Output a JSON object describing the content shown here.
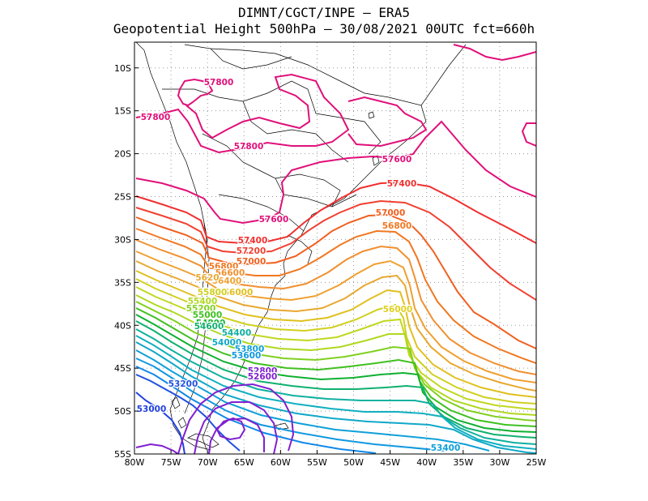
{
  "header": {
    "line1": "DIMNT/CGCT/INPE  –  ERA5",
    "line2": "Geopotential Height 500hPa –  30/08/2021 00UTC fct=660h"
  },
  "map": {
    "lon_range": [
      -80,
      -25
    ],
    "lat_range": [
      -55,
      -7
    ],
    "lon_ticks": [
      "80W",
      "75W",
      "70W",
      "65W",
      "60W",
      "55W",
      "50W",
      "45W",
      "40W",
      "35W",
      "30W",
      "25W"
    ],
    "lat_ticks": [
      "10S",
      "15S",
      "20S",
      "25S",
      "30S",
      "35S",
      "40S",
      "45S",
      "50S",
      "55S"
    ],
    "grid": true,
    "contour_interval": 200
  },
  "contour_labels": [
    {
      "text": "57800",
      "color": "#e0107a"
    },
    {
      "text": "57800",
      "color": "#e0107a"
    },
    {
      "text": "57800",
      "color": "#e0107a"
    },
    {
      "text": "57600",
      "color": "#e0107a"
    },
    {
      "text": "57600",
      "color": "#e0107a"
    },
    {
      "text": "57400",
      "color": "#f03030"
    },
    {
      "text": "57400",
      "color": "#f03030"
    },
    {
      "text": "57200",
      "color": "#f04030"
    },
    {
      "text": "57000",
      "color": "#f06020"
    },
    {
      "text": "57000",
      "color": "#f06020"
    },
    {
      "text": "56800",
      "color": "#f07820"
    },
    {
      "text": "56800",
      "color": "#f07820"
    },
    {
      "text": "56600",
      "color": "#f09030"
    },
    {
      "text": "56400",
      "color": "#f0a030"
    },
    {
      "text": "5620",
      "color": "#e8a830"
    },
    {
      "text": "56000",
      "color": "#e0c020"
    },
    {
      "text": "55800",
      "color": "#d0d020"
    },
    {
      "text": "56000",
      "color": "#e0d020"
    },
    {
      "text": "55400",
      "color": "#b0d820"
    },
    {
      "text": "55200",
      "color": "#80d020"
    },
    {
      "text": "55000",
      "color": "#40c020"
    },
    {
      "text": "54800",
      "color": "#10b030"
    },
    {
      "text": "54600",
      "color": "#10b070"
    },
    {
      "text": "54400",
      "color": "#10b0a0"
    },
    {
      "text": "54000",
      "color": "#10a8c8"
    },
    {
      "text": "53800",
      "color": "#10a0d8"
    },
    {
      "text": "53600",
      "color": "#1098e0"
    },
    {
      "text": "53400",
      "color": "#10a0d8"
    },
    {
      "text": "53200",
      "color": "#2050e0"
    },
    {
      "text": "53000",
      "color": "#2040e0"
    },
    {
      "text": "52800",
      "color": "#8020d0"
    },
    {
      "text": "52600",
      "color": "#8020d0"
    }
  ],
  "colors": {
    "c578": "#e0107a",
    "c576": "#e0107a",
    "red": "#f03030",
    "orange": "#f07820",
    "yellow": "#e0d020",
    "green": "#20c020",
    "cyan": "#10b0c0",
    "blue": "#2050e0",
    "purple": "#8020d0"
  }
}
